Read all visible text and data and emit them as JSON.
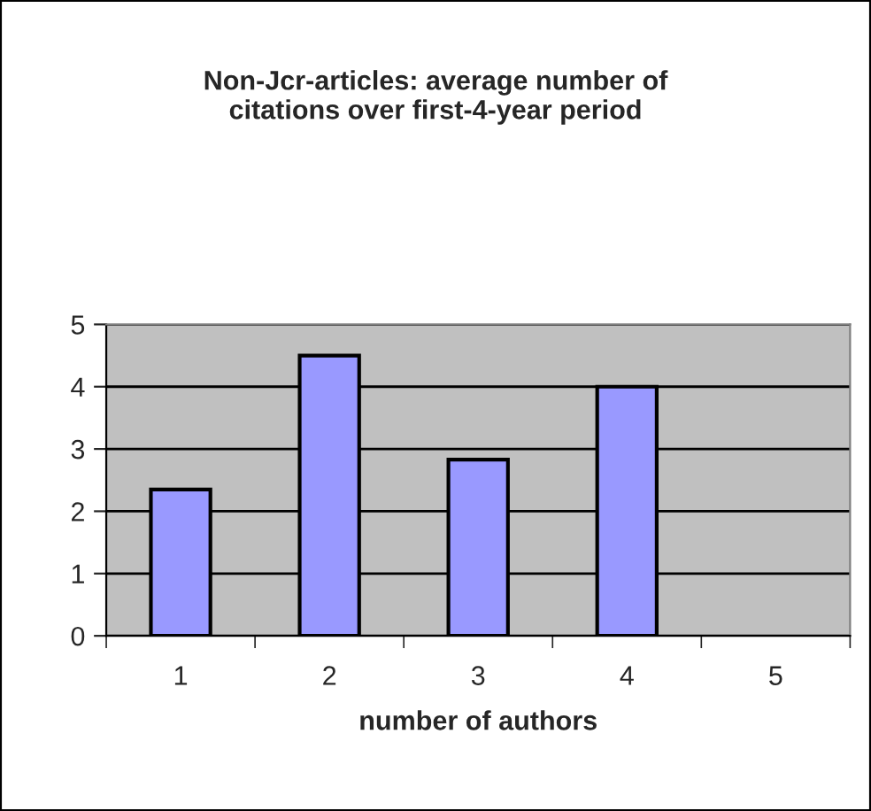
{
  "chart_data": {
    "type": "bar",
    "title": "Non-Jcr-articles: average number of\ncitations over first-4-year period",
    "xlabel": "number of authors",
    "categories": [
      "1",
      "2",
      "3",
      "4",
      "5"
    ],
    "values": [
      2.35,
      4.5,
      2.83,
      4.0,
      null
    ],
    "color": "#9999ff",
    "ylim": [
      0,
      5
    ],
    "yticks": [
      0,
      1,
      2,
      3,
      4,
      5
    ],
    "grid": "y"
  }
}
